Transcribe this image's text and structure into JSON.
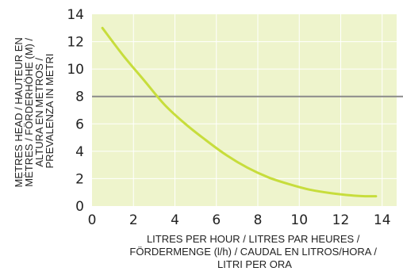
{
  "chart_data": {
    "type": "line",
    "title": "",
    "xlabel_lines": [
      "LITRES PER HOUR / LITRES PAR HEURES /",
      "FÖRDERMENGE (l/h) / CAUDAL EN LITROS/HORA /",
      "LITRI PER ORA"
    ],
    "ylabel_lines": [
      "METRES HEAD / HAUTEUR EN",
      "MÈTRES / FÖRDERHÖHE (M) /",
      "ALTURA EN METROS /",
      "PREVALENZA IN METRI"
    ],
    "xlim": [
      0,
      14.7
    ],
    "ylim": [
      0,
      14
    ],
    "xticks": [
      0,
      2,
      4,
      6,
      8,
      10,
      12,
      14
    ],
    "yticks": [
      0,
      2,
      4,
      6,
      8,
      10,
      12,
      14
    ],
    "grid": true,
    "series": [
      {
        "x": [
          0.5,
          1.5,
          2.5,
          3.5,
          4.5,
          5.5,
          6.5,
          7.5,
          8.5,
          9.5,
          10.5,
          11.5,
          12.5,
          13.2,
          13.7
        ],
        "y": [
          13.0,
          11.0,
          9.2,
          7.4,
          6.0,
          4.8,
          3.7,
          2.8,
          2.1,
          1.6,
          1.2,
          0.95,
          0.78,
          0.72,
          0.72
        ]
      }
    ],
    "reference_line": {
      "y": 8
    },
    "colors": {
      "plot_background": "#eef4cc",
      "grid": "#ffffff",
      "curve": "#c7dd3c",
      "reference_line": "#8a8a8a",
      "text": "#222222"
    }
  }
}
